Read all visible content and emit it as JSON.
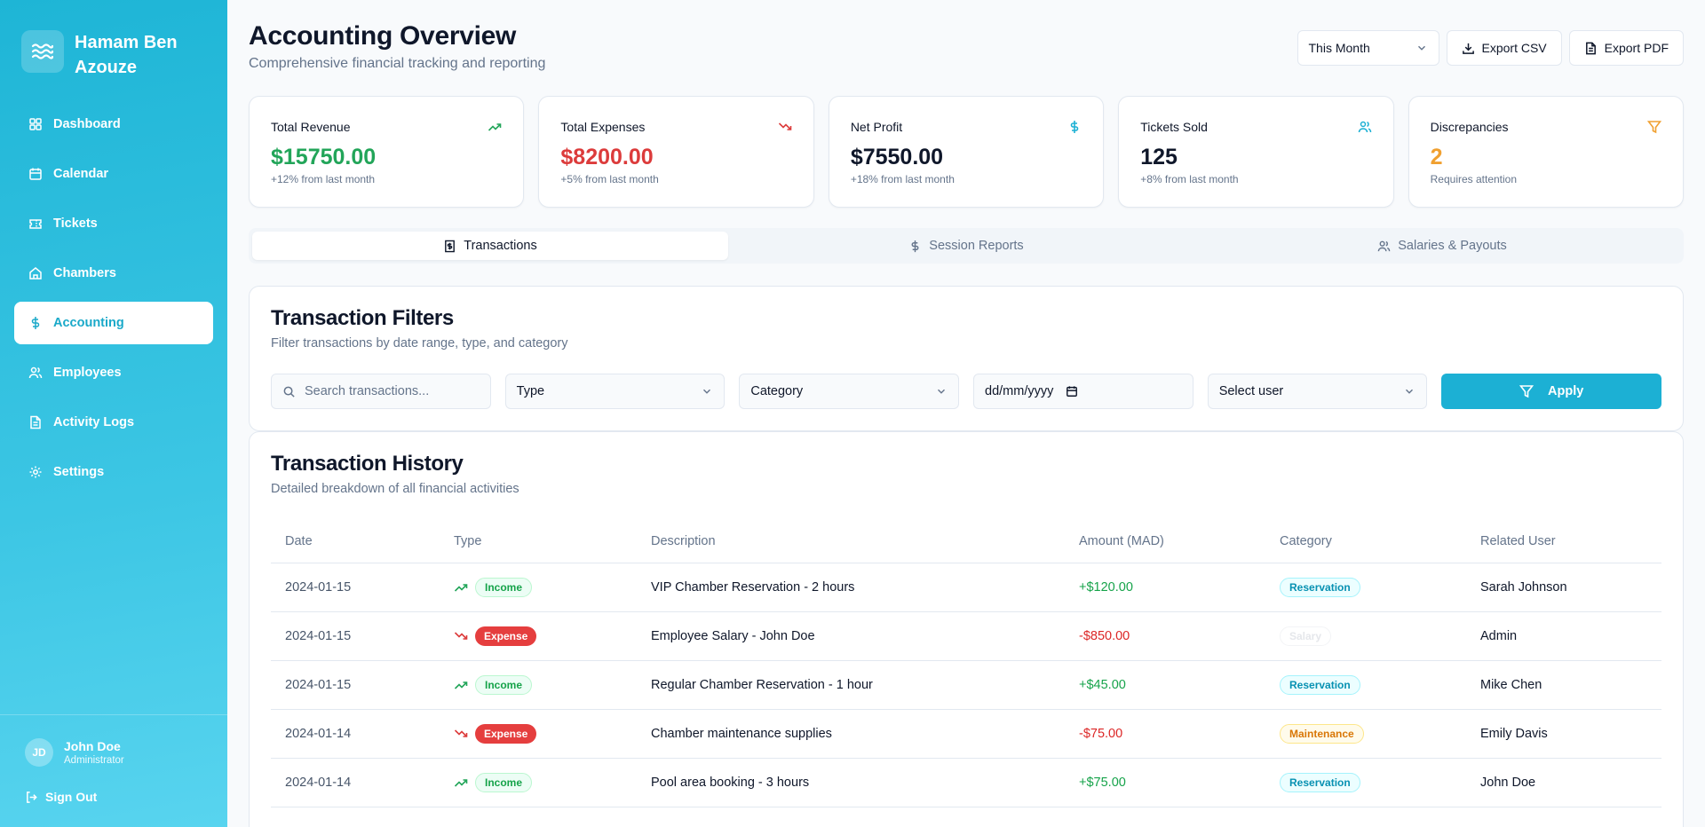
{
  "sidebar": {
    "brand": "Hamam Ben Azouze",
    "items": [
      {
        "label": "Dashboard",
        "icon": "dashboard-icon"
      },
      {
        "label": "Calendar",
        "icon": "calendar-icon"
      },
      {
        "label": "Tickets",
        "icon": "ticket-icon"
      },
      {
        "label": "Chambers",
        "icon": "home-icon"
      },
      {
        "label": "Accounting",
        "icon": "dollar-icon",
        "active": true
      },
      {
        "label": "Employees",
        "icon": "users-icon"
      },
      {
        "label": "Activity Logs",
        "icon": "file-icon"
      },
      {
        "label": "Settings",
        "icon": "gear-icon"
      }
    ],
    "user": {
      "initials": "JD",
      "name": "John Doe",
      "role": "Administrator"
    },
    "sign_out": "Sign Out"
  },
  "header": {
    "title": "Accounting Overview",
    "subtitle": "Comprehensive financial tracking and reporting",
    "period": "This Month",
    "export_csv": "Export CSV",
    "export_pdf": "Export PDF"
  },
  "stats": [
    {
      "label": "Total Revenue",
      "value": "$15750.00",
      "note": "+12% from last month",
      "color": "#22a559",
      "icon": "trending-up-icon"
    },
    {
      "label": "Total Expenses",
      "value": "$8200.00",
      "note": "+5% from last month",
      "color": "#dc3b3b",
      "icon": "trending-down-icon"
    },
    {
      "label": "Net Profit",
      "value": "$7550.00",
      "note": "+18% from last month",
      "color": "#0f172a",
      "icon": "dollar-icon"
    },
    {
      "label": "Tickets Sold",
      "value": "125",
      "note": "+8% from last month",
      "color": "#0f172a",
      "icon": "users-icon"
    },
    {
      "label": "Discrepancies",
      "value": "2",
      "note": "Requires attention",
      "color": "#f0a030",
      "icon": "filter-icon"
    }
  ],
  "tabs": [
    {
      "label": "Transactions",
      "active": true
    },
    {
      "label": "Session Reports"
    },
    {
      "label": "Salaries & Payouts"
    }
  ],
  "filters": {
    "title": "Transaction Filters",
    "subtitle": "Filter transactions by date range, type, and category",
    "search_placeholder": "Search transactions...",
    "type": "Type",
    "category": "Category",
    "date": "dd/mm/yyyy",
    "user": "Select user",
    "apply": "Apply"
  },
  "history": {
    "title": "Transaction History",
    "subtitle": "Detailed breakdown of all financial activities",
    "columns": [
      "Date",
      "Type",
      "Description",
      "Amount (MAD)",
      "Category",
      "Related User"
    ],
    "rows": [
      {
        "date": "2024-01-15",
        "type": "Income",
        "description": "VIP Chamber Reservation - 2 hours",
        "amount": "+$120.00",
        "category": "Reservation",
        "user": "Sarah Johnson"
      },
      {
        "date": "2024-01-15",
        "type": "Expense",
        "description": "Employee Salary - John Doe",
        "amount": "-$850.00",
        "category": "Salary",
        "user": "Admin"
      },
      {
        "date": "2024-01-15",
        "type": "Income",
        "description": "Regular Chamber Reservation - 1 hour",
        "amount": "+$45.00",
        "category": "Reservation",
        "user": "Mike Chen"
      },
      {
        "date": "2024-01-14",
        "type": "Expense",
        "description": "Chamber maintenance supplies",
        "amount": "-$75.00",
        "category": "Maintenance",
        "user": "Emily Davis"
      },
      {
        "date": "2024-01-14",
        "type": "Income",
        "description": "Pool area booking - 3 hours",
        "amount": "+$75.00",
        "category": "Reservation",
        "user": "John Doe"
      }
    ]
  }
}
